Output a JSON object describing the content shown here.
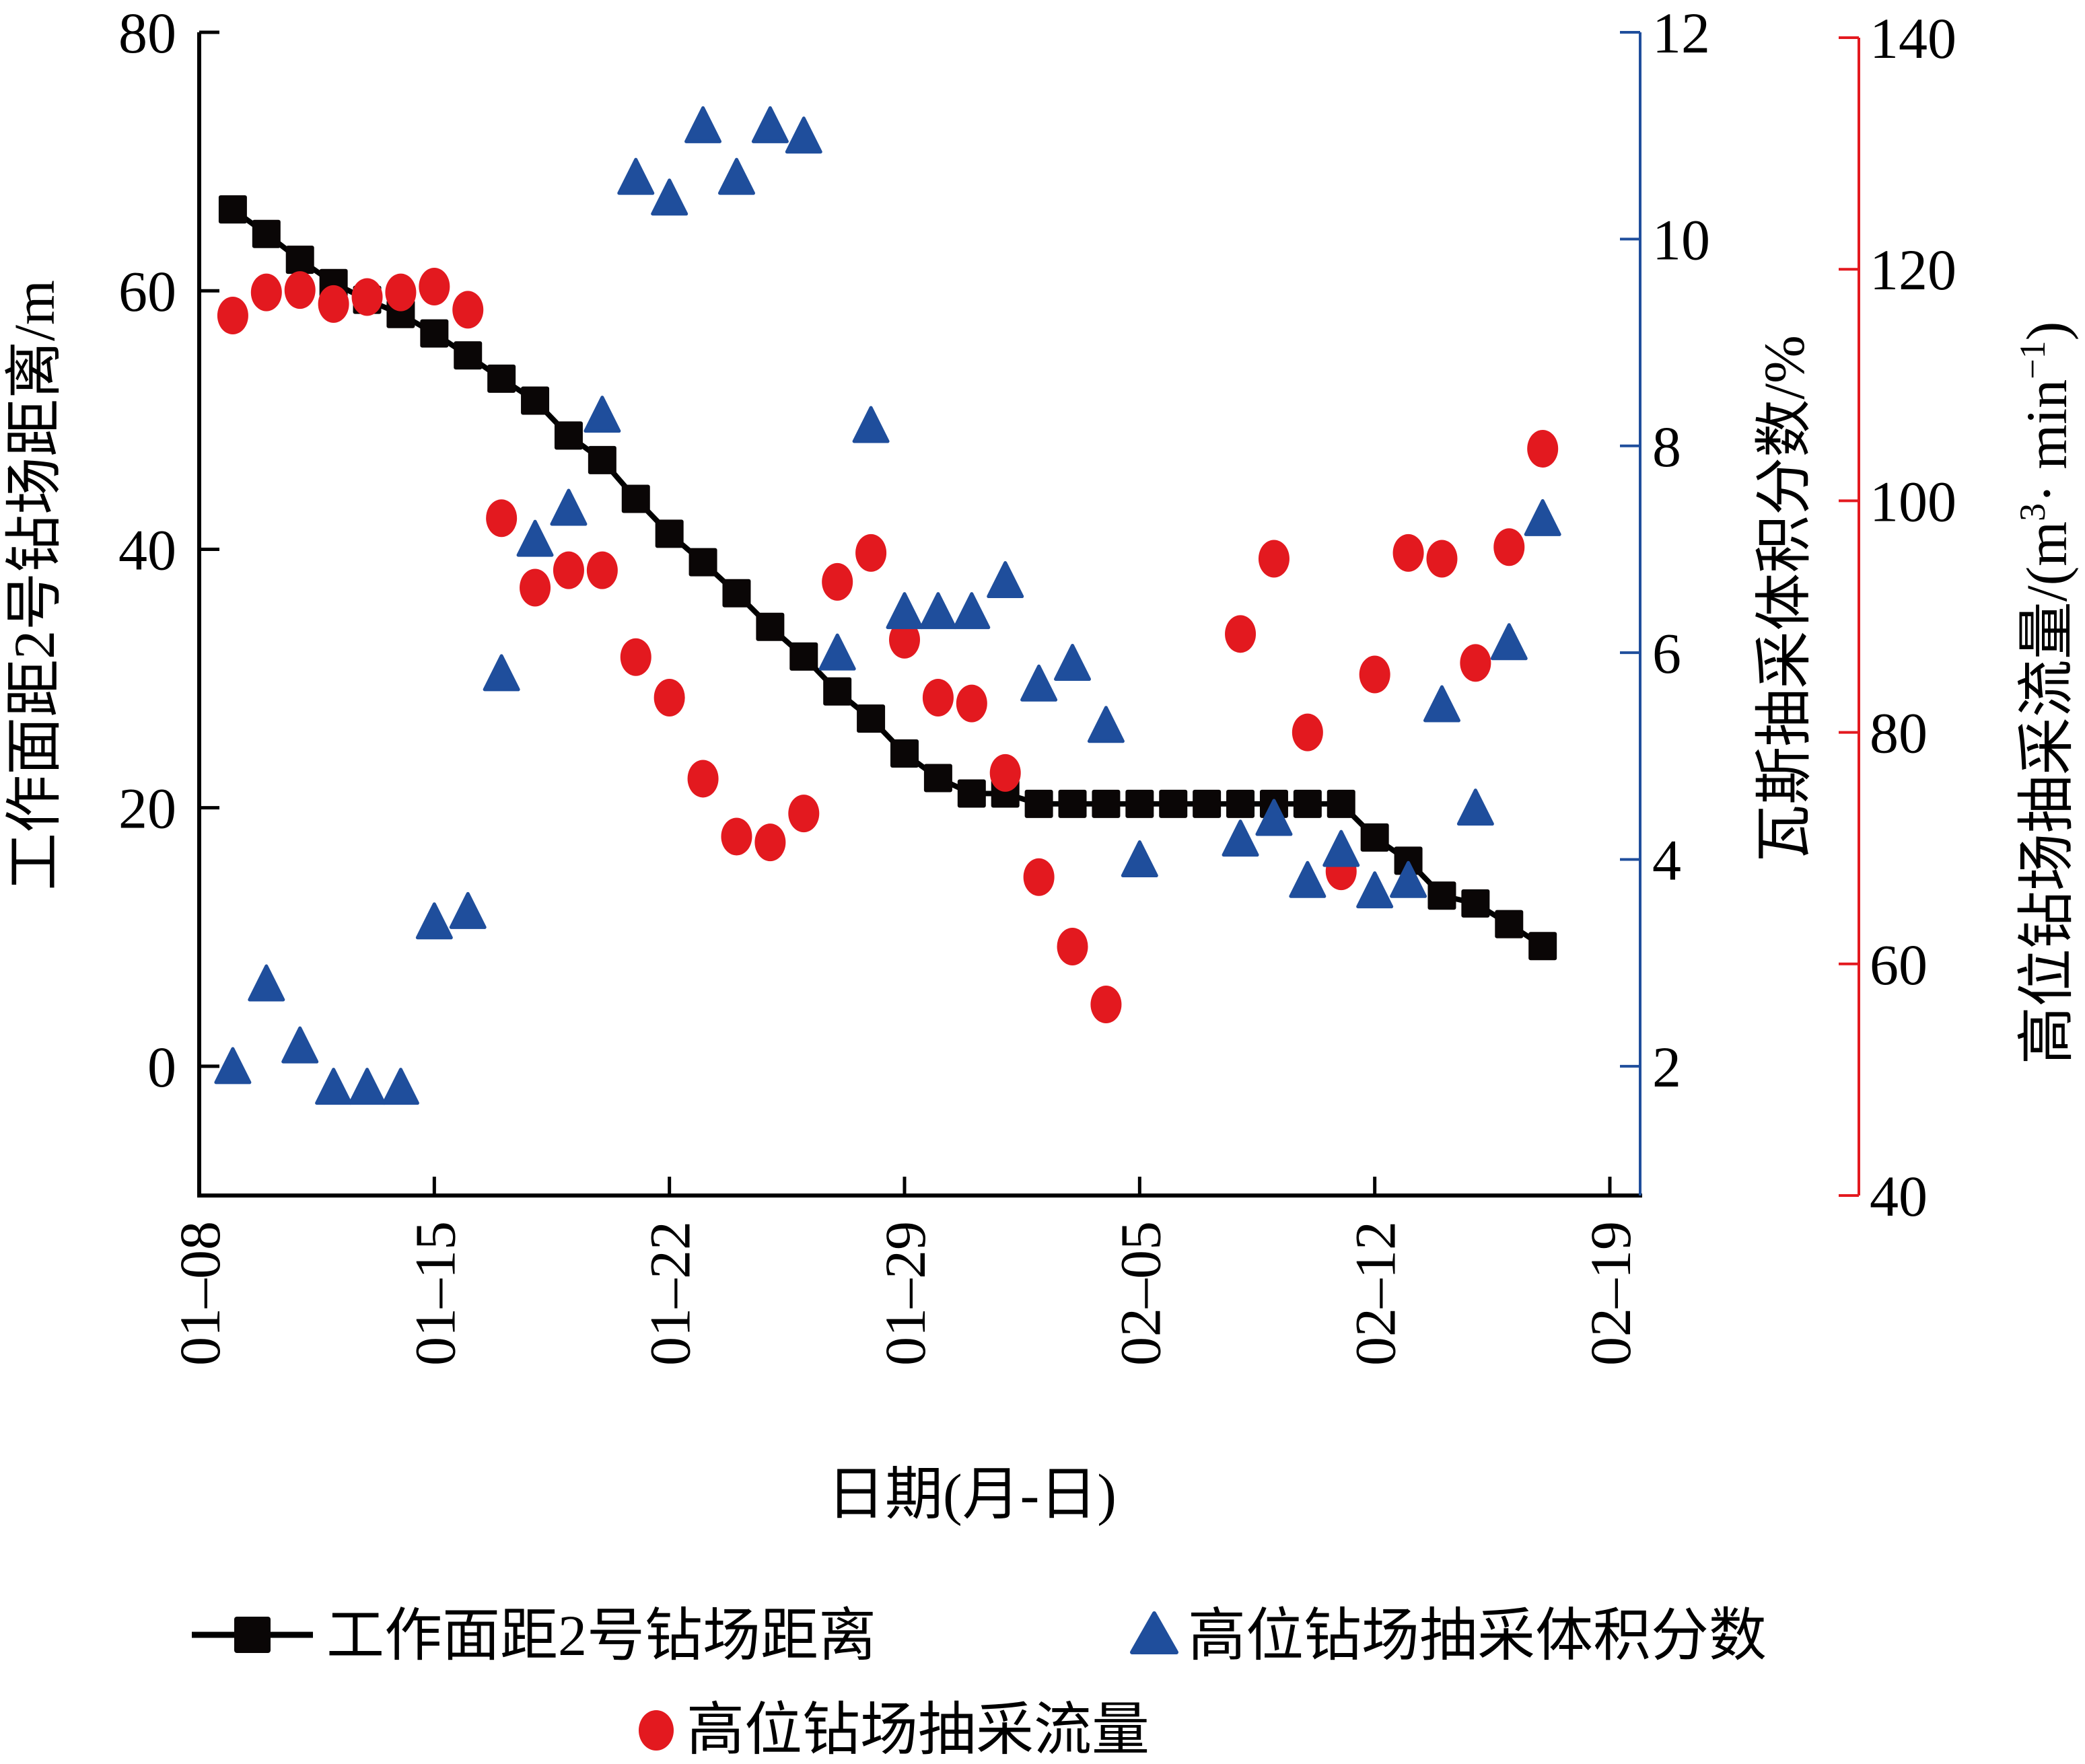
{
  "chart_data": {
    "type": "scatter",
    "xlabel": "日期(月-日)",
    "x_ticks": [
      "01–08",
      "01–15",
      "01–22",
      "01–29",
      "02–05",
      "02–12",
      "02–19"
    ],
    "x_start_day": 0,
    "x_end_day": 42,
    "x_days_note": "day 0 = 01-08",
    "axes": {
      "left": {
        "label": "工作面距2号钻场距离/m",
        "ylim": [
          -10,
          80
        ],
        "ticks": [
          0,
          20,
          40,
          60,
          80
        ],
        "color": "#000000"
      },
      "right1": {
        "label": "瓦斯抽采体积分数/%",
        "ylim": [
          0.75,
          12
        ],
        "ticks": [
          2,
          4,
          6,
          8,
          10,
          12
        ],
        "color": "#1f4e9c"
      },
      "right2": {
        "label_main": "高位钻场抽采流量/(m",
        "label_sup1": "3",
        "label_mid": "· min",
        "label_sup2": "−1",
        "label_end": ")",
        "ylim": [
          40,
          140
        ],
        "ticks": [
          40,
          60,
          80,
          100,
          120,
          140
        ],
        "color": "#e3191f"
      }
    },
    "series": [
      {
        "name": "工作面距2号钻场距离",
        "axis": "left",
        "marker": "square-line",
        "color": "#000000",
        "x": [
          1,
          2,
          3,
          4,
          5,
          6,
          7,
          8,
          9,
          10,
          11,
          12,
          13,
          14,
          15,
          16,
          17,
          18,
          19,
          20,
          21,
          22,
          23,
          24,
          25,
          26,
          27,
          28,
          29,
          30,
          31,
          32,
          33,
          34,
          35,
          36,
          37,
          38,
          39,
          40
        ],
        "values": [
          66.3,
          64.4,
          62.4,
          60.6,
          59.3,
          58.2,
          56.7,
          55.0,
          53.2,
          51.5,
          48.8,
          46.9,
          43.9,
          41.2,
          39.0,
          36.6,
          34.0,
          31.7,
          29.0,
          26.9,
          24.2,
          22.3,
          21.1,
          21.1,
          20.3,
          20.3,
          20.3,
          20.3,
          20.3,
          20.3,
          20.3,
          20.3,
          20.3,
          20.3,
          17.7,
          15.9,
          13.2,
          12.6,
          11.0,
          9.3
        ]
      },
      {
        "name": "高位钻场抽采体积分数",
        "axis": "right1",
        "marker": "triangle",
        "color": "#1f4e9c",
        "x": [
          1,
          2,
          3,
          4,
          5,
          6,
          7,
          8,
          9,
          10,
          11,
          12,
          13,
          14,
          15,
          16,
          17,
          18,
          19,
          20,
          21,
          22,
          23,
          24,
          25,
          26,
          27,
          28,
          31,
          32,
          33,
          34,
          35,
          36,
          37,
          38,
          39,
          40
        ],
        "values": [
          2.0,
          2.8,
          2.2,
          1.8,
          1.8,
          1.8,
          3.4,
          3.5,
          5.8,
          7.1,
          7.4,
          8.3,
          10.6,
          10.4,
          11.1,
          10.6,
          11.1,
          11.0,
          6.0,
          8.2,
          6.4,
          6.4,
          6.4,
          6.7,
          5.7,
          5.9,
          5.3,
          4.0,
          4.2,
          4.4,
          3.8,
          4.1,
          3.7,
          3.8,
          5.5,
          4.5,
          6.1,
          7.3
        ]
      },
      {
        "name": "高位钻场抽采流量",
        "axis": "right2",
        "marker": "circle",
        "color": "#e3191f",
        "x": [
          1,
          2,
          3,
          4,
          5,
          6,
          7,
          8,
          9,
          10,
          11,
          12,
          13,
          14,
          15,
          16,
          17,
          18,
          19,
          20,
          21,
          22,
          23,
          24,
          25,
          26,
          27,
          31,
          32,
          33,
          34,
          35,
          36,
          37,
          38,
          39,
          40
        ],
        "values": [
          116.0,
          118.0,
          118.2,
          117.0,
          117.6,
          118.0,
          118.5,
          116.5,
          98.5,
          92.5,
          94.0,
          94.0,
          86.5,
          83.0,
          76.0,
          71.0,
          70.5,
          73.0,
          93.0,
          95.5,
          88.0,
          83.0,
          82.5,
          76.5,
          67.5,
          61.5,
          56.5,
          88.5,
          95.0,
          80.0,
          68.0,
          85.0,
          95.5,
          95.0,
          86.0,
          96.0,
          104.5
        ]
      }
    ],
    "legend": {
      "placement": "bottom",
      "items": [
        "工作面距2号钻场距离",
        "高位钻场抽采体积分数",
        "高位钻场抽采流量"
      ]
    }
  }
}
